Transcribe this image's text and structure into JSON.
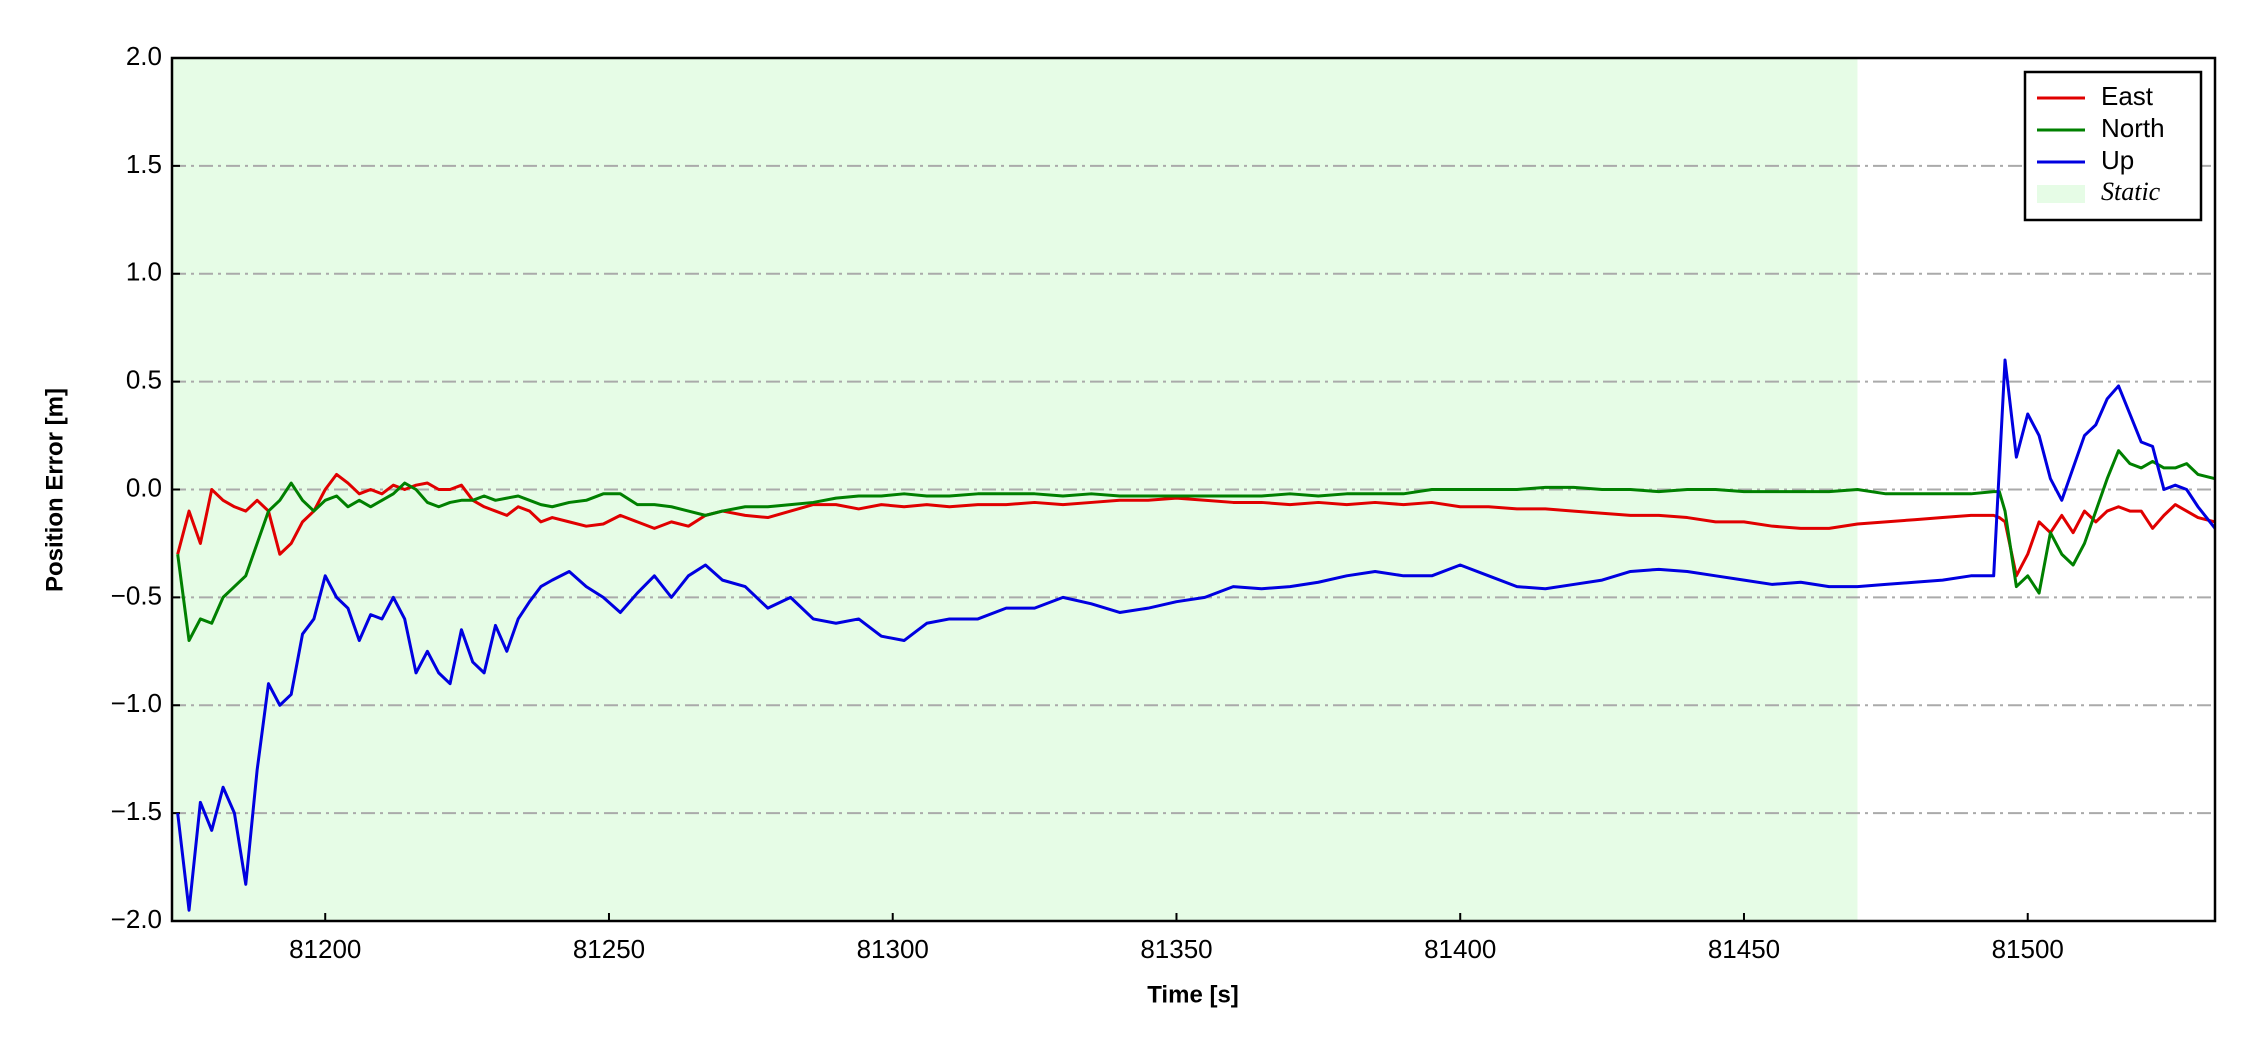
{
  "chart_data": {
    "type": "line",
    "xlabel": "Time [s]",
    "ylabel": "Position Error [m]",
    "xlim": [
      81173,
      81533
    ],
    "ylim": [
      -2,
      2
    ],
    "xticks": [
      81200,
      81250,
      81300,
      81350,
      81400,
      81450,
      81500
    ],
    "yticks": [
      {
        "value": -2,
        "label": "−2.0"
      },
      {
        "value": -1.5,
        "label": "−1.5"
      },
      {
        "value": -1,
        "label": "−1.0"
      },
      {
        "value": -0.5,
        "label": "−0.5"
      },
      {
        "value": 0,
        "label": "0.0"
      },
      {
        "value": 0.5,
        "label": "0.5"
      },
      {
        "value": 1,
        "label": "1.0"
      },
      {
        "value": 1.5,
        "label": "1.5"
      },
      {
        "value": 2,
        "label": "2.0"
      }
    ],
    "grid": true,
    "legend": "upper right",
    "shaded_regions": [
      {
        "name": "Static",
        "color": "#e6fce6",
        "xlim": [
          81173,
          81470
        ]
      }
    ],
    "x": [
      81174,
      81176,
      81178,
      81180,
      81182,
      81184,
      81186,
      81188,
      81190,
      81192,
      81194,
      81196,
      81198,
      81200,
      81202,
      81204,
      81206,
      81208,
      81210,
      81212,
      81214,
      81216,
      81218,
      81220,
      81222,
      81224,
      81226,
      81228,
      81230,
      81232,
      81234,
      81236,
      81238,
      81240,
      81243,
      81246,
      81249,
      81252,
      81255,
      81258,
      81261,
      81264,
      81267,
      81270,
      81274,
      81278,
      81282,
      81286,
      81290,
      81294,
      81298,
      81302,
      81306,
      81310,
      81315,
      81320,
      81325,
      81330,
      81335,
      81340,
      81345,
      81350,
      81355,
      81360,
      81365,
      81370,
      81375,
      81380,
      81385,
      81390,
      81395,
      81400,
      81405,
      81410,
      81415,
      81420,
      81425,
      81430,
      81435,
      81440,
      81445,
      81450,
      81455,
      81460,
      81465,
      81470,
      81475,
      81480,
      81485,
      81490,
      81494,
      81495,
      81496,
      81498,
      81500,
      81502,
      81504,
      81506,
      81508,
      81510,
      81512,
      81514,
      81516,
      81518,
      81520,
      81522,
      81524,
      81526,
      81528,
      81530,
      81533
    ],
    "series": [
      {
        "name": "East",
        "color": "#e00000",
        "values": [
          -0.3,
          -0.1,
          -0.25,
          0.0,
          -0.05,
          -0.08,
          -0.1,
          -0.05,
          -0.1,
          -0.3,
          -0.25,
          -0.15,
          -0.1,
          0.0,
          0.07,
          0.03,
          -0.02,
          0.0,
          -0.02,
          0.02,
          0.0,
          0.02,
          0.03,
          0.0,
          0.0,
          0.02,
          -0.05,
          -0.08,
          -0.1,
          -0.12,
          -0.08,
          -0.1,
          -0.15,
          -0.13,
          -0.15,
          -0.17,
          -0.16,
          -0.12,
          -0.15,
          -0.18,
          -0.15,
          -0.17,
          -0.12,
          -0.1,
          -0.12,
          -0.13,
          -0.1,
          -0.07,
          -0.07,
          -0.09,
          -0.07,
          -0.08,
          -0.07,
          -0.08,
          -0.07,
          -0.07,
          -0.06,
          -0.07,
          -0.06,
          -0.05,
          -0.05,
          -0.04,
          -0.05,
          -0.06,
          -0.06,
          -0.07,
          -0.06,
          -0.07,
          -0.06,
          -0.07,
          -0.06,
          -0.08,
          -0.08,
          -0.09,
          -0.09,
          -0.1,
          -0.11,
          -0.12,
          -0.12,
          -0.13,
          -0.15,
          -0.15,
          -0.17,
          -0.18,
          -0.18,
          -0.16,
          -0.15,
          -0.14,
          -0.13,
          -0.12,
          -0.12,
          -0.13,
          -0.15,
          -0.4,
          -0.3,
          -0.15,
          -0.2,
          -0.12,
          -0.2,
          -0.1,
          -0.15,
          -0.1,
          -0.08,
          -0.1,
          -0.1,
          -0.18,
          -0.12,
          -0.07,
          -0.1,
          -0.13,
          -0.15
        ]
      },
      {
        "name": "North",
        "color": "#008000",
        "values": [
          -0.3,
          -0.7,
          -0.6,
          -0.62,
          -0.5,
          -0.45,
          -0.4,
          -0.25,
          -0.1,
          -0.05,
          0.03,
          -0.05,
          -0.1,
          -0.05,
          -0.03,
          -0.08,
          -0.05,
          -0.08,
          -0.05,
          -0.02,
          0.03,
          0.0,
          -0.06,
          -0.08,
          -0.06,
          -0.05,
          -0.05,
          -0.03,
          -0.05,
          -0.04,
          -0.03,
          -0.05,
          -0.07,
          -0.08,
          -0.06,
          -0.05,
          -0.02,
          -0.02,
          -0.07,
          -0.07,
          -0.08,
          -0.1,
          -0.12,
          -0.1,
          -0.08,
          -0.08,
          -0.07,
          -0.06,
          -0.04,
          -0.03,
          -0.03,
          -0.02,
          -0.03,
          -0.03,
          -0.02,
          -0.02,
          -0.02,
          -0.03,
          -0.02,
          -0.03,
          -0.03,
          -0.03,
          -0.03,
          -0.03,
          -0.03,
          -0.02,
          -0.03,
          -0.02,
          -0.02,
          -0.02,
          0.0,
          0.0,
          0.0,
          0.0,
          0.01,
          0.01,
          0.0,
          0.0,
          -0.01,
          0.0,
          0.0,
          -0.01,
          -0.01,
          -0.01,
          -0.01,
          0.0,
          -0.02,
          -0.02,
          -0.02,
          -0.02,
          -0.01,
          -0.01,
          -0.1,
          -0.45,
          -0.4,
          -0.48,
          -0.2,
          -0.3,
          -0.35,
          -0.25,
          -0.1,
          0.05,
          0.18,
          0.12,
          0.1,
          0.13,
          0.1,
          0.1,
          0.12,
          0.07,
          0.05
        ]
      },
      {
        "name": "Up",
        "color": "#0000e0",
        "values": [
          -1.5,
          -1.95,
          -1.45,
          -1.58,
          -1.38,
          -1.5,
          -1.83,
          -1.3,
          -0.9,
          -1.0,
          -0.95,
          -0.67,
          -0.6,
          -0.4,
          -0.5,
          -0.55,
          -0.7,
          -0.58,
          -0.6,
          -0.5,
          -0.6,
          -0.85,
          -0.75,
          -0.85,
          -0.9,
          -0.65,
          -0.8,
          -0.85,
          -0.63,
          -0.75,
          -0.6,
          -0.52,
          -0.45,
          -0.42,
          -0.38,
          -0.45,
          -0.5,
          -0.57,
          -0.48,
          -0.4,
          -0.5,
          -0.4,
          -0.35,
          -0.42,
          -0.45,
          -0.55,
          -0.5,
          -0.6,
          -0.62,
          -0.6,
          -0.68,
          -0.7,
          -0.62,
          -0.6,
          -0.6,
          -0.55,
          -0.55,
          -0.5,
          -0.53,
          -0.57,
          -0.55,
          -0.52,
          -0.5,
          -0.45,
          -0.46,
          -0.45,
          -0.43,
          -0.4,
          -0.38,
          -0.4,
          -0.4,
          -0.35,
          -0.4,
          -0.45,
          -0.46,
          -0.44,
          -0.42,
          -0.38,
          -0.37,
          -0.38,
          -0.4,
          -0.42,
          -0.44,
          -0.43,
          -0.45,
          -0.45,
          -0.44,
          -0.43,
          -0.42,
          -0.4,
          -0.4,
          0.1,
          0.6,
          0.15,
          0.35,
          0.25,
          0.05,
          -0.05,
          0.1,
          0.25,
          0.3,
          0.42,
          0.48,
          0.35,
          0.22,
          0.2,
          0.0,
          0.02,
          0.0,
          -0.08,
          -0.18
        ]
      }
    ]
  }
}
